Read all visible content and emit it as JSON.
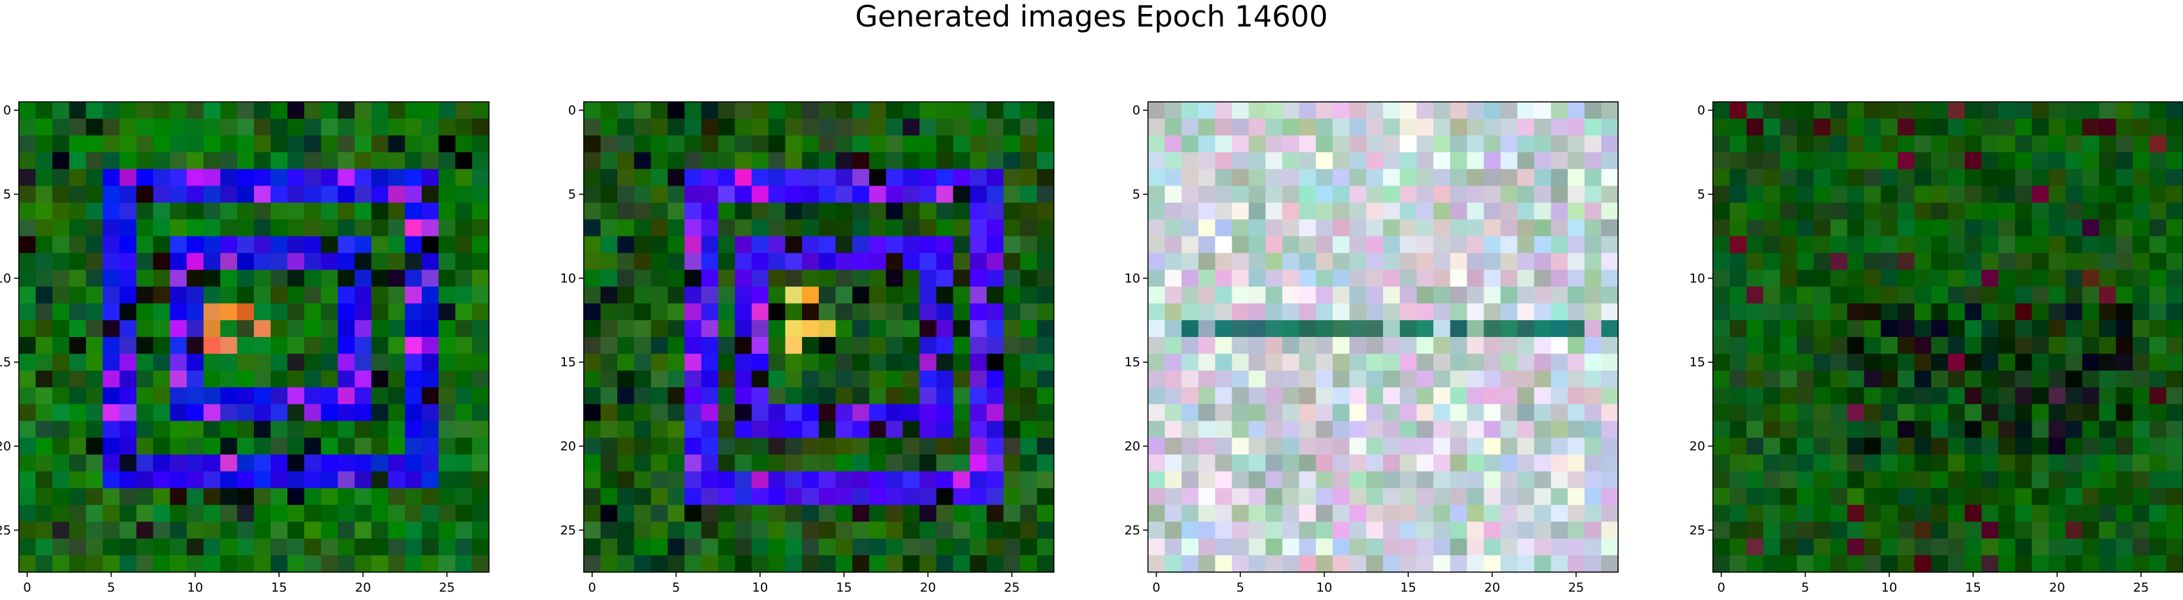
{
  "figure": {
    "title": "Generated images Epoch 14600"
  },
  "chart_data": {
    "type": "heatmap",
    "title": "Generated images Epoch 14600",
    "grid": false,
    "image_shape": [
      28,
      28,
      3
    ],
    "xlim": [
      -0.5,
      27.5
    ],
    "ylim": [
      27.5,
      -0.5
    ],
    "xticks": [
      0,
      5,
      10,
      15,
      20,
      25
    ],
    "yticks": [
      0,
      5,
      10,
      15,
      20,
      25
    ],
    "panels": [
      {
        "palette": "green-blue",
        "background": "#0f6a12",
        "foreground": "#1a14e6",
        "accent": "#ff8040",
        "motif": "double-ring",
        "ring_outer": [
          5,
          4,
          24,
          22
        ],
        "ring_inner": [
          9,
          8,
          20,
          18
        ]
      },
      {
        "palette": "green-violet",
        "background": "#155c12",
        "foreground": "#3a12f0",
        "accent": "#f2c24a",
        "motif": "double-ring",
        "ring_outer": [
          6,
          4,
          24,
          23
        ],
        "ring_inner": [
          9,
          8,
          21,
          19
        ]
      },
      {
        "palette": "pastel-noise",
        "background": "#d6d8da",
        "foreground": "#e8f0f0",
        "accent": "#2e8c78",
        "motif": "noise"
      },
      {
        "palette": "dark-green",
        "background": "#0c5a0c",
        "foreground": "#0a1f0a",
        "accent": "#5a0a2a",
        "motif": "dark-band"
      }
    ]
  }
}
